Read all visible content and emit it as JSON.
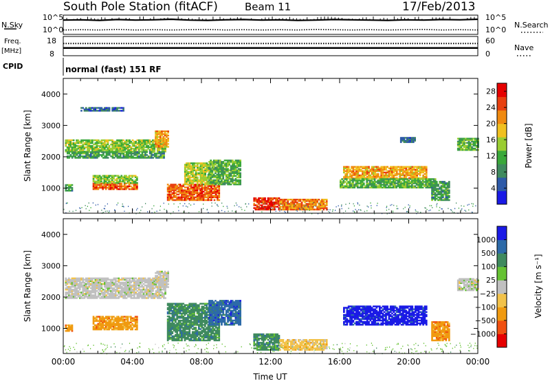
{
  "header": {
    "station": "South Pole Station (fitACF)",
    "beam": "Beam 11",
    "date": "17/Feb/2013"
  },
  "panel_labels": {
    "nsky": "N.Sky",
    "nsearch": "N.Search",
    "freq": "Freq.",
    "freq_unit": "[MHz]",
    "nave": "Nave",
    "cpid": "CPID",
    "cpid_value": "normal (fast) 151 RF"
  },
  "colors": {
    "power": [
      "#1a1ae6",
      "#2d5aa8",
      "#3f8a5e",
      "#3aa83a",
      "#9acd32",
      "#f0c020",
      "#f08a10",
      "#e84010",
      "#e60000"
    ],
    "velocity": [
      "#e60000",
      "#f05010",
      "#f09a10",
      "#f2c24a",
      "#c0c0c0",
      "#66c233",
      "#3f8a5e",
      "#2d6aa8",
      "#1a1ae6"
    ]
  },
  "chart_data": [
    {
      "type": "line",
      "name": "noise-panel",
      "y_left_ticks": [
        "10^5",
        "10^0"
      ],
      "y_right_ticks": [
        "10^5",
        "10^0"
      ],
      "series": [
        {
          "name": "N.Sky",
          "values": [
            4.2,
            4.3,
            4.1,
            4.4,
            4.2,
            4.3,
            4.5,
            4.2,
            4.1,
            4.3,
            4.4,
            4.2,
            4.3,
            4.1,
            4.2,
            4.4,
            4.3,
            4.2,
            4.1,
            4.3,
            4.2,
            4.4,
            4.3,
            4.5
          ]
        },
        {
          "name": "N.Search",
          "values": [
            0.6,
            0.7,
            0.6,
            0.8,
            0.6,
            0.7,
            0.6,
            0.7,
            0.8,
            0.6,
            0.7,
            0.6,
            0.7,
            0.6,
            0.8,
            0.7,
            0.6,
            0.7,
            0.6,
            0.7,
            0.8,
            0.6,
            0.7,
            0.6
          ]
        }
      ]
    },
    {
      "type": "line",
      "name": "freq-panel",
      "y_left_ticks": [
        "18",
        "8"
      ],
      "y_right_ticks": [
        "60",
        "0"
      ],
      "series": [
        {
          "name": "Freq",
          "values": [
            12,
            12,
            12,
            12,
            12,
            12,
            12,
            12,
            12,
            12,
            12,
            12,
            12,
            12,
            12,
            12,
            12,
            12,
            12,
            12,
            12,
            12,
            12,
            12
          ]
        },
        {
          "name": "Nave",
          "values": [
            38,
            38,
            38,
            38,
            38,
            38,
            38,
            38,
            38,
            38,
            38,
            38,
            38,
            38,
            38,
            38,
            38,
            38,
            38,
            38,
            38,
            38,
            38,
            38
          ]
        }
      ]
    },
    {
      "type": "heatmap",
      "name": "power-panel",
      "ylabel": "Slant Range [km]",
      "ylim": [
        200,
        4500
      ],
      "y_ticks": [
        "1000",
        "2000",
        "3000",
        "4000"
      ],
      "x_ticks": [
        "00:00",
        "04:00",
        "08:00",
        "12:00",
        "16:00",
        "20:00",
        "00:00"
      ],
      "xlim_hours": [
        0,
        24
      ],
      "colorbar": {
        "label": "Power [dB]",
        "ticks": [
          "4",
          "8",
          "12",
          "16",
          "20",
          "24",
          "28"
        ],
        "range": [
          0,
          30
        ]
      },
      "regions": [
        {
          "t": [
            0.1,
            5.9
          ],
          "r": [
            2150,
            2550
          ],
          "value": 14
        },
        {
          "t": [
            0.2,
            5.8
          ],
          "r": [
            1950,
            2150
          ],
          "value": 10
        },
        {
          "t": [
            5.3,
            6.1
          ],
          "r": [
            2300,
            2800
          ],
          "value": 20
        },
        {
          "t": [
            1.0,
            3.5
          ],
          "r": [
            3450,
            3550
          ],
          "value": 6
        },
        {
          "t": [
            1.7,
            4.3
          ],
          "r": [
            950,
            1150
          ],
          "value": 24
        },
        {
          "t": [
            1.7,
            4.3
          ],
          "r": [
            1150,
            1400
          ],
          "value": 14
        },
        {
          "t": [
            0.1,
            0.5
          ],
          "r": [
            900,
            1100
          ],
          "value": 10
        },
        {
          "t": [
            6.0,
            9.0
          ],
          "r": [
            600,
            1100
          ],
          "value": 24
        },
        {
          "t": [
            7.0,
            8.5
          ],
          "r": [
            1100,
            1800
          ],
          "value": 16
        },
        {
          "t": [
            8.4,
            10.2
          ],
          "r": [
            1100,
            1900
          ],
          "value": 12
        },
        {
          "t": [
            11.0,
            12.5
          ],
          "r": [
            300,
            700
          ],
          "value": 26
        },
        {
          "t": [
            12.5,
            15.2
          ],
          "r": [
            300,
            650
          ],
          "value": 22
        },
        {
          "t": [
            16.2,
            21.0
          ],
          "r": [
            1300,
            1700
          ],
          "value": 20
        },
        {
          "t": [
            16.0,
            21.5
          ],
          "r": [
            1000,
            1300
          ],
          "value": 12
        },
        {
          "t": [
            21.3,
            22.3
          ],
          "r": [
            600,
            1200
          ],
          "value": 10
        },
        {
          "t": [
            22.8,
            24.0
          ],
          "r": [
            2200,
            2600
          ],
          "value": 12
        },
        {
          "t": [
            19.5,
            20.4
          ],
          "r": [
            2450,
            2600
          ],
          "value": 6
        }
      ]
    },
    {
      "type": "heatmap",
      "name": "velocity-panel",
      "ylabel": "Slant Range [km]",
      "ylim": [
        200,
        4500
      ],
      "y_ticks": [
        "1000",
        "2000",
        "3000",
        "4000"
      ],
      "x_ticks": [
        "00:00",
        "04:00",
        "08:00",
        "12:00",
        "16:00",
        "20:00",
        "00:00"
      ],
      "xlabel": "Time UT",
      "xlim_hours": [
        0,
        24
      ],
      "colorbar": {
        "label": "Velocity [m s⁻¹]",
        "ticks": [
          "1000",
          "500",
          "100",
          "25",
          "−25",
          "−100",
          "−500",
          "−1000"
        ]
      },
      "regions": [
        {
          "t": [
            0.1,
            5.9
          ],
          "r": [
            1950,
            2600
          ],
          "category": 4
        },
        {
          "t": [
            5.3,
            6.1
          ],
          "r": [
            2300,
            2800
          ],
          "category": 4
        },
        {
          "t": [
            1.7,
            4.3
          ],
          "r": [
            950,
            1400
          ],
          "category": 2
        },
        {
          "t": [
            0.1,
            0.5
          ],
          "r": [
            900,
            1100
          ],
          "category": 2
        },
        {
          "t": [
            6.0,
            9.0
          ],
          "r": [
            600,
            1800
          ],
          "category": 6
        },
        {
          "t": [
            8.4,
            10.2
          ],
          "r": [
            1100,
            1900
          ],
          "category": 7
        },
        {
          "t": [
            11.0,
            12.5
          ],
          "r": [
            300,
            800
          ],
          "category": 6
        },
        {
          "t": [
            12.5,
            15.2
          ],
          "r": [
            300,
            650
          ],
          "category": 3
        },
        {
          "t": [
            16.2,
            21.0
          ],
          "r": [
            1100,
            1700
          ],
          "category": 8
        },
        {
          "t": [
            21.3,
            22.3
          ],
          "r": [
            600,
            1200
          ],
          "category": 2
        },
        {
          "t": [
            22.8,
            24.0
          ],
          "r": [
            2200,
            2600
          ],
          "category": 4
        }
      ]
    }
  ]
}
